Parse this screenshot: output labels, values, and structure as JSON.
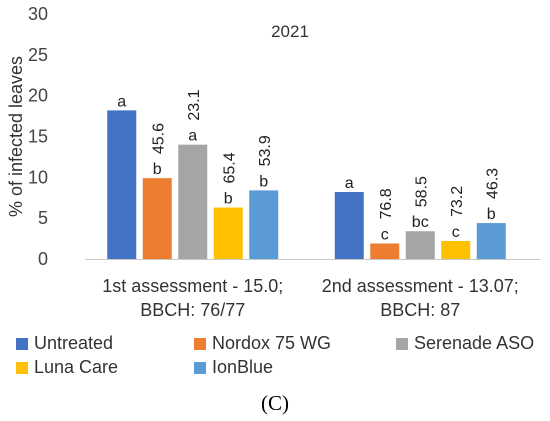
{
  "chart_data": {
    "type": "bar",
    "title": "2021",
    "ylabel": "% of infected leaves",
    "xlabel": "",
    "ylim": [
      0,
      30
    ],
    "yticks": [
      0,
      5,
      10,
      15,
      20,
      25,
      30
    ],
    "grid": false,
    "legend_position": "bottom",
    "categories": [
      [
        "1st assessment - 15.0;",
        "BBCH: 76/77"
      ],
      [
        "2nd assessment - 13.07;",
        "BBCH: 87"
      ]
    ],
    "series": [
      {
        "name": "Untreated",
        "color": "#4472C4",
        "values": [
          18.2,
          8.2
        ],
        "letters": [
          "a",
          "a"
        ],
        "efficacy": [
          "",
          ""
        ]
      },
      {
        "name": "Nordox 75 WG",
        "color": "#ED7D31",
        "values": [
          9.9,
          1.9
        ],
        "letters": [
          "b",
          "c"
        ],
        "efficacy": [
          "45.6",
          "76.8"
        ]
      },
      {
        "name": "Serenade ASO",
        "color": "#A5A5A5",
        "values": [
          14.0,
          3.4
        ],
        "letters": [
          "a",
          "bc"
        ],
        "efficacy": [
          "23.1",
          "58.5"
        ]
      },
      {
        "name": "Luna Care",
        "color": "#FFC000",
        "values": [
          6.3,
          2.2
        ],
        "letters": [
          "b",
          "c"
        ],
        "efficacy": [
          "65.4",
          "73.2"
        ]
      },
      {
        "name": "IonBlue",
        "color": "#5B9BD5",
        "values": [
          8.4,
          4.4
        ],
        "letters": [
          "b",
          "b"
        ],
        "efficacy": [
          "53.9",
          "46.3"
        ]
      }
    ]
  },
  "panel_label": "(C)"
}
